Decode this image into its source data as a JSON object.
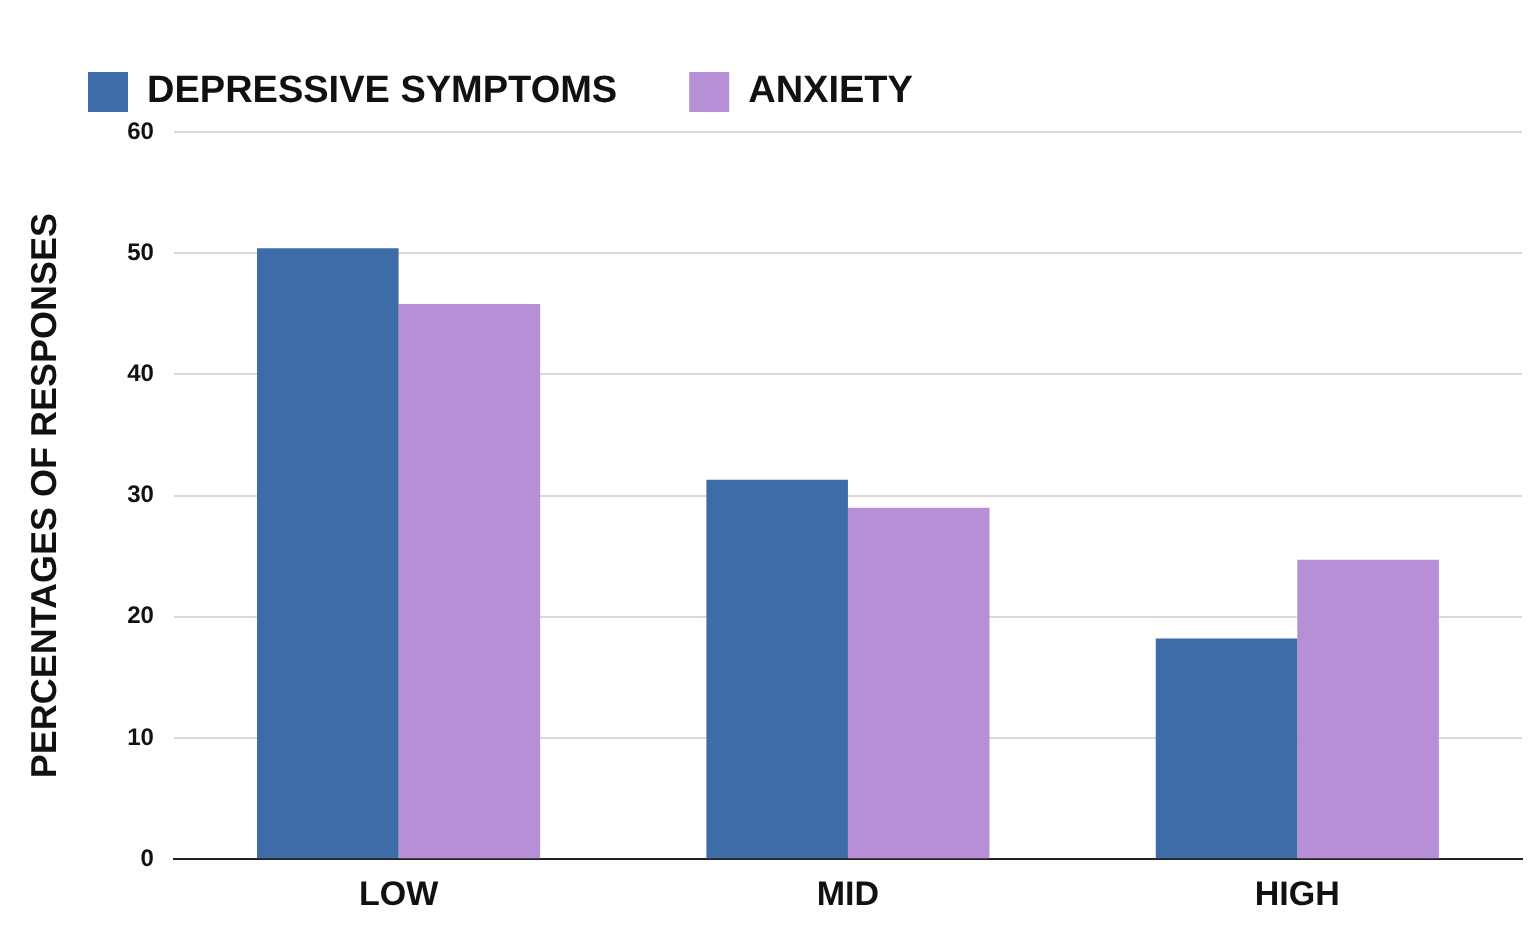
{
  "chart_data": {
    "type": "bar",
    "ylabel": "PERCENTAGES OF RESPONSES",
    "categories": [
      "LOW",
      "MID",
      "HIGH"
    ],
    "series": [
      {
        "name": "DEPRESSIVE SYMPTOMS",
        "color": "#3d6ca8",
        "values": [
          50.4,
          31.3,
          18.2
        ]
      },
      {
        "name": "ANXIETY",
        "color": "#b78fd6",
        "values": [
          45.8,
          29.0,
          24.7
        ]
      }
    ],
    "ylim": [
      0,
      60
    ],
    "yticks": [
      0,
      10,
      20,
      30,
      40,
      50,
      60
    ],
    "grid": "y",
    "legend": "top"
  }
}
